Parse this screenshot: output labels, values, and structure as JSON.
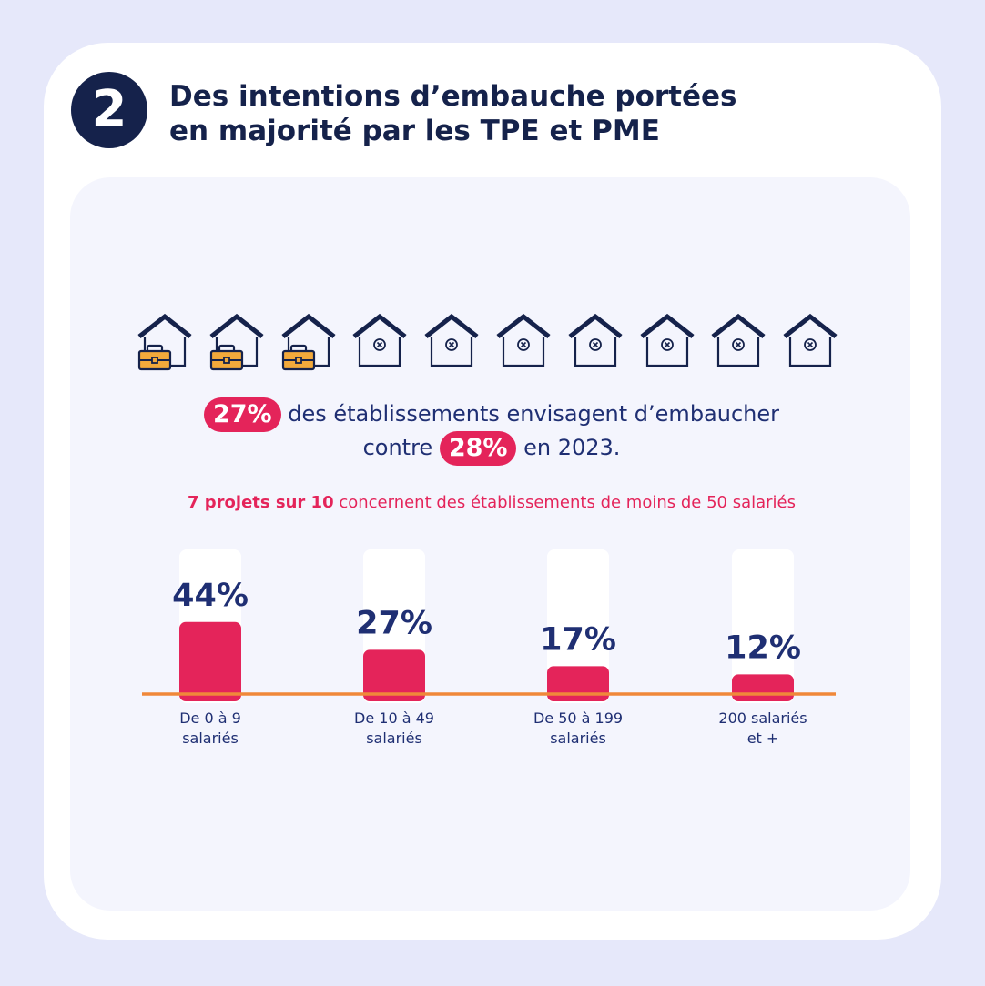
{
  "header": {
    "number": "2",
    "title_line1": "Des intentions d’embauche portées",
    "title_line2": "en majorité par les TPE et PME"
  },
  "icons": {
    "total": 10,
    "highlighted": 3,
    "highlighted_icon": "house-briefcase-icon",
    "other_icon": "house-x-icon"
  },
  "stats": {
    "line1_value": "27%",
    "line1_text": " des établissements envisagent d’embaucher",
    "line2_prefix": "contre ",
    "line2_value": "28%",
    "line2_suffix": " en 2023."
  },
  "subtitle": {
    "bold": "7 projets sur 10",
    "rest": " concernent des établissements de moins de 50 salariés"
  },
  "colors": {
    "navy": "#15224b",
    "text_blue": "#1f2f73",
    "accent_pink": "#e4245a",
    "axis_orange": "#f0883a",
    "briefcase_orange": "#f2a93b"
  },
  "chart_data": {
    "type": "bar",
    "categories": [
      [
        "De 0 à 9",
        "salariés"
      ],
      [
        "De 10 à 49",
        "salariés"
      ],
      [
        "De 50 à 199",
        "salariés"
      ],
      [
        "200 salariés",
        "et +"
      ]
    ],
    "values": [
      44,
      27,
      17,
      12
    ],
    "value_labels": [
      "44%",
      "27%",
      "17%",
      "12%"
    ],
    "ylim": [
      0,
      100
    ],
    "grid": false
  }
}
